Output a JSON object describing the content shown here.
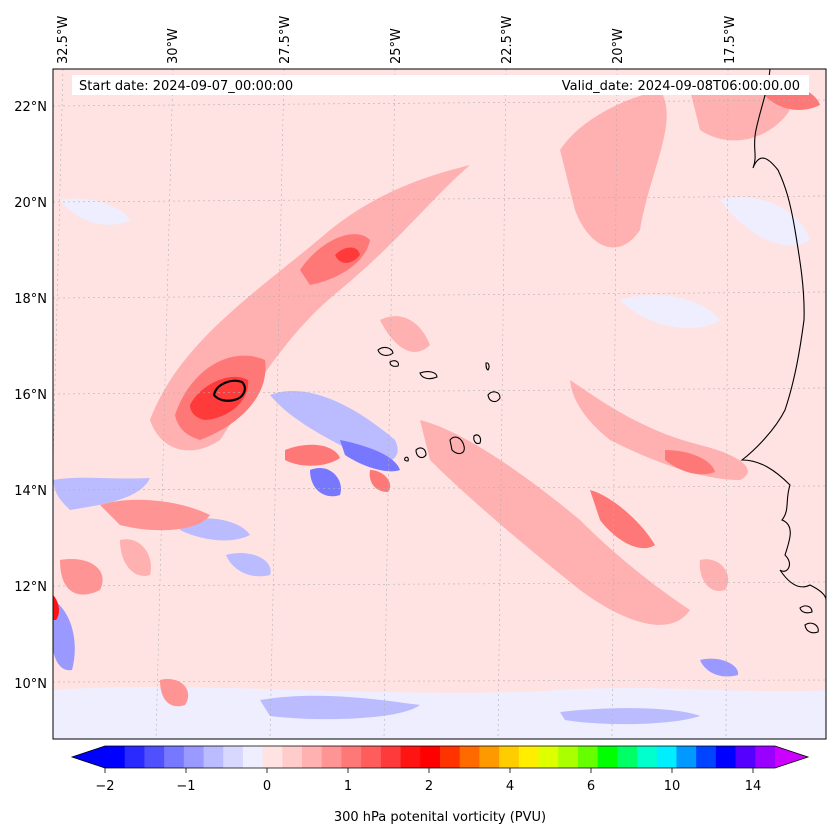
{
  "map": {
    "start_date": "Start date: 2024-09-07_00:00:00",
    "valid_date": "Valid_date: 2024-09-08T06:00:00.00",
    "lon_labels": [
      "32.5°W",
      "30°W",
      "27.5°W",
      "25°W",
      "22.5°W",
      "20°W",
      "17.5°W"
    ],
    "lat_labels": [
      "22°N",
      "20°N",
      "18°N",
      "16°N",
      "14°N",
      "12°N",
      "10°N"
    ]
  },
  "colorbar": {
    "title": "300 hPa potenital vorticity (PVU)",
    "tick_labels": [
      "−2",
      "−1",
      "0",
      "1",
      "2",
      "4",
      "6",
      "10",
      "14"
    ],
    "colors": [
      "#0000ff",
      "#2a2aff",
      "#5050ff",
      "#7777ff",
      "#9999ff",
      "#bbbbff",
      "#d8d8ff",
      "#eeeeff",
      "#ffe3e3",
      "#ffcccc",
      "#ffb0b0",
      "#ff9494",
      "#ff7878",
      "#ff5c5c",
      "#ff3a3a",
      "#ff1414",
      "#ff0000",
      "#ff3300",
      "#ff6a00",
      "#ff9900",
      "#ffcc00",
      "#ffee00",
      "#ddff00",
      "#aaff00",
      "#66ff00",
      "#00ff00",
      "#00ff66",
      "#00ffcc",
      "#00eeff",
      "#0099ff",
      "#0044ff",
      "#0000ff",
      "#5500ff",
      "#9900ff"
    ],
    "under_color": "#0000ff",
    "over_color": "#cc00ff"
  }
}
